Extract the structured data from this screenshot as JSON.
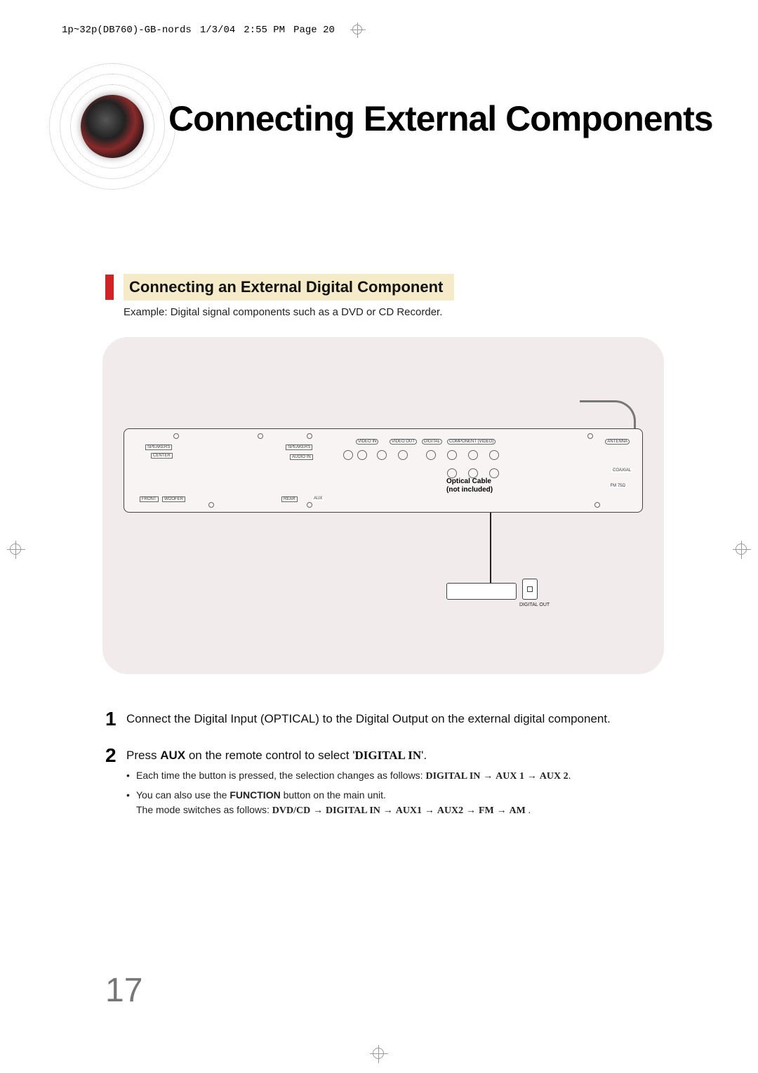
{
  "meta": {
    "doc_ref": "1p~32p(DB760)-GB-nords",
    "date": "1/3/04",
    "time": "2:55 PM",
    "page_marker": "Page 20"
  },
  "title": "Connecting External Components",
  "section": {
    "accent_color": "#d22222",
    "highlight_color": "#f5ebc8",
    "heading": "Connecting an External Digital Component",
    "example": "Example: Digital signal components such as a DVD or CD Recorder."
  },
  "diagram": {
    "bg_color": "#f1ebeb",
    "optical_label_line1": "Optical Cable",
    "optical_label_line2": "(not included)",
    "digital_out": "DIGITAL OUT",
    "panel_labels": {
      "speakers_l": "SPEAKERS",
      "speakers_r": "SPEAKERS",
      "center": "CENTER",
      "front": "FRONT",
      "woofer": "WOOFER",
      "rear": "REAR",
      "aux": "AUX",
      "audio_in": "AUDIO IN",
      "video_in": "VIDEO IN",
      "video_out": "VIDEO OUT",
      "digital": "DIGITAL",
      "component": "COMPONENT (VIDEO)",
      "antenna": "ANTENNA",
      "coaxial": "COAXIAL",
      "fm": "FM 75Ω"
    }
  },
  "steps": [
    {
      "num": "1",
      "text_parts": [
        {
          "t": "Connect the Digital Input (OPTICAL) to the Digital Output on the external digital component.",
          "cls": ""
        }
      ],
      "bullets": []
    },
    {
      "num": "2",
      "text_parts": [
        {
          "t": "Press ",
          "cls": ""
        },
        {
          "t": "AUX",
          "cls": "bold"
        },
        {
          "t": " on the remote control to select '",
          "cls": ""
        },
        {
          "t": "DIGITAL IN",
          "cls": "serif"
        },
        {
          "t": "'.",
          "cls": ""
        }
      ],
      "bullets": [
        {
          "parts": [
            {
              "t": "Each time the button is pressed, the selection changes as follows: ",
              "cls": ""
            },
            {
              "t": "DIGITAL IN",
              "cls": "serif"
            },
            {
              "t": " → ",
              "cls": "arrow"
            },
            {
              "t": "AUX 1",
              "cls": "serif"
            },
            {
              "t": " → ",
              "cls": "arrow"
            },
            {
              "t": "AUX 2",
              "cls": "serif"
            },
            {
              "t": ".",
              "cls": ""
            }
          ]
        },
        {
          "parts": [
            {
              "t": "You can also use the ",
              "cls": ""
            },
            {
              "t": "FUNCTION",
              "cls": "bold"
            },
            {
              "t": " button on the main unit.",
              "cls": ""
            }
          ],
          "cont_parts": [
            {
              "t": "The mode switches as follows: ",
              "cls": ""
            },
            {
              "t": "DVD/CD",
              "cls": "serif"
            },
            {
              "t": " → ",
              "cls": "arrow"
            },
            {
              "t": "DIGITAL IN",
              "cls": "serif"
            },
            {
              "t": " → ",
              "cls": "arrow"
            },
            {
              "t": "AUX1",
              "cls": "serif"
            },
            {
              "t": " → ",
              "cls": "arrow"
            },
            {
              "t": "AUX2",
              "cls": "serif"
            },
            {
              "t": " → ",
              "cls": "arrow"
            },
            {
              "t": "FM",
              "cls": "serif"
            },
            {
              "t": " → ",
              "cls": "arrow"
            },
            {
              "t": "AM ",
              "cls": "serif"
            },
            {
              "t": ".",
              "cls": ""
            }
          ]
        }
      ]
    }
  ],
  "page_number": "17",
  "colors": {
    "text": "#111111",
    "muted": "#777777",
    "border": "#999999"
  }
}
